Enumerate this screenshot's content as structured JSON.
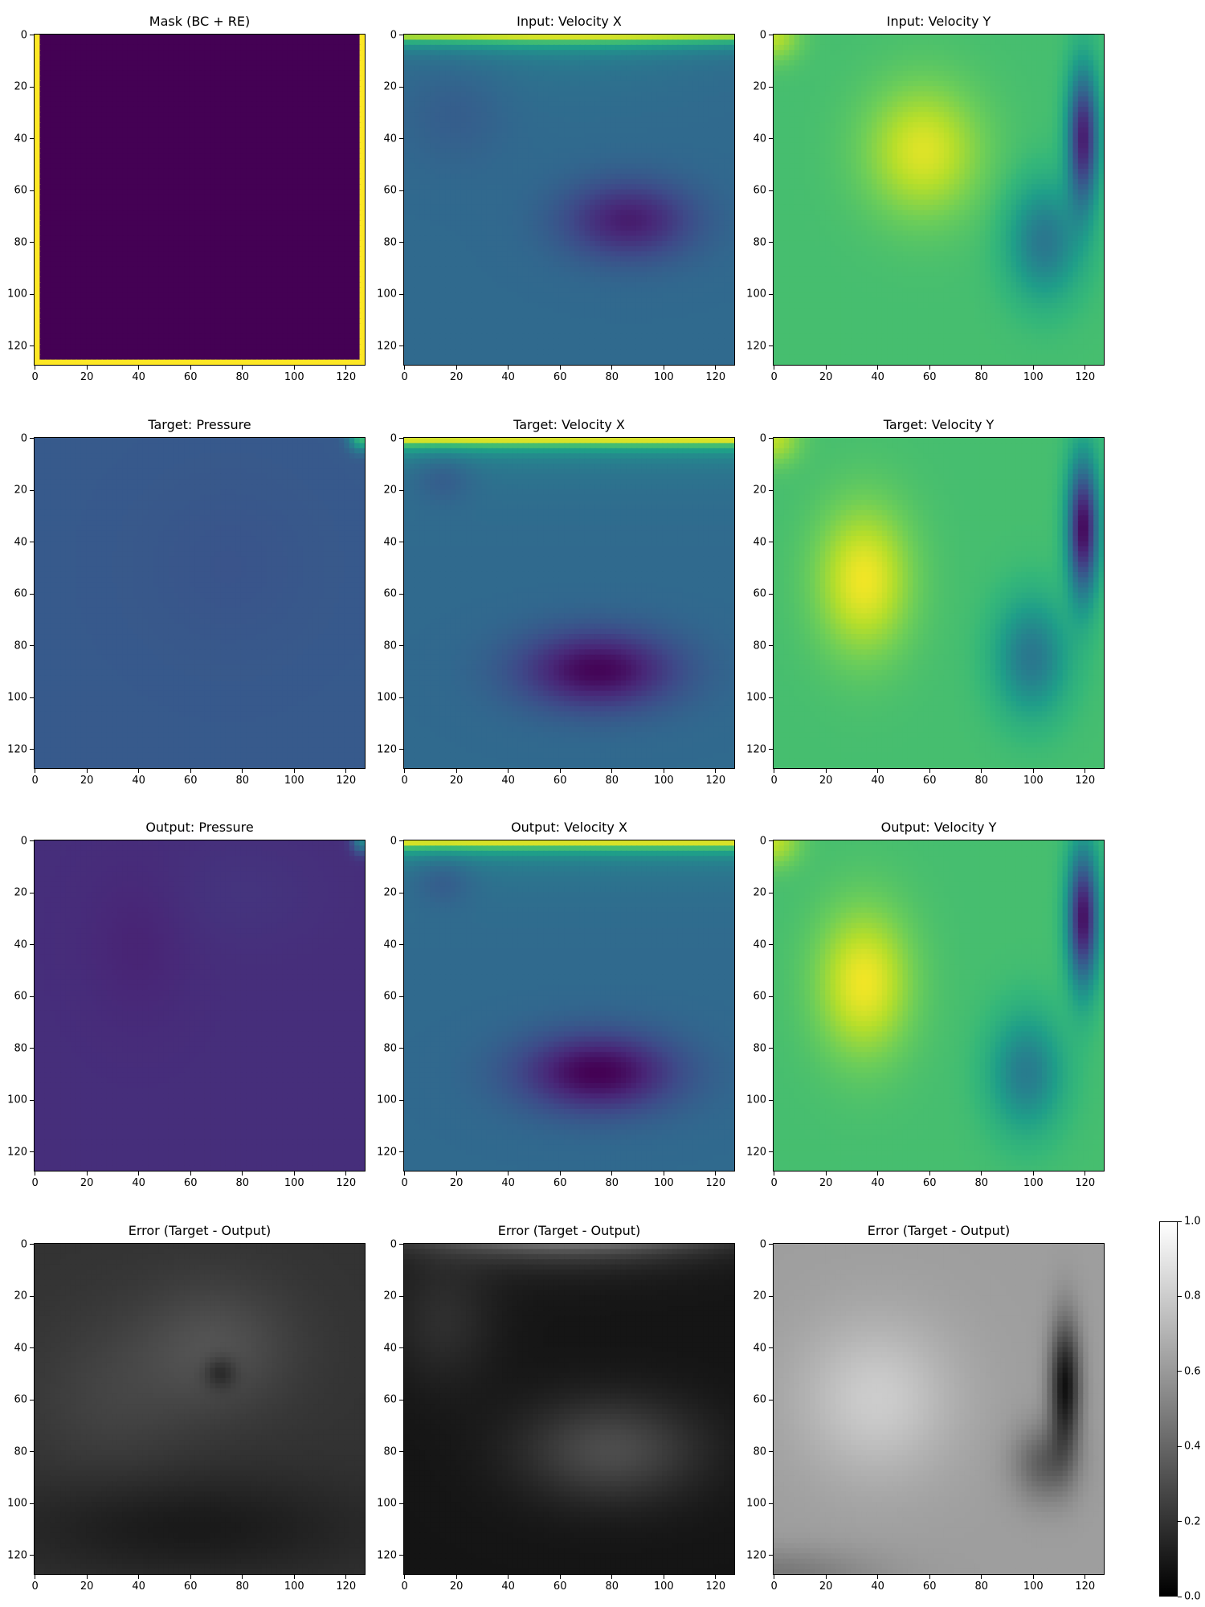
{
  "chart_data": [
    {
      "type": "heatmap",
      "title": "Mask (BC + RE)",
      "colormap": "viridis",
      "field": "mask",
      "xlim": [
        0,
        127
      ],
      "ylim": [
        127,
        0
      ],
      "x_ticks": [
        0,
        20,
        40,
        60,
        80,
        100,
        120
      ],
      "y_ticks": [
        0,
        20,
        40,
        60,
        80,
        100,
        120
      ]
    },
    {
      "type": "heatmap",
      "title": "Input: Velocity X",
      "colormap": "viridis",
      "field": "input_vx",
      "xlim": [
        0,
        127
      ],
      "ylim": [
        127,
        0
      ],
      "x_ticks": [
        0,
        20,
        40,
        60,
        80,
        100,
        120
      ],
      "y_ticks": [
        0,
        20,
        40,
        60,
        80,
        100,
        120
      ]
    },
    {
      "type": "heatmap",
      "title": "Input: Velocity Y",
      "colormap": "viridis",
      "field": "input_vy",
      "xlim": [
        0,
        127
      ],
      "ylim": [
        127,
        0
      ],
      "x_ticks": [
        0,
        20,
        40,
        60,
        80,
        100,
        120
      ],
      "y_ticks": [
        0,
        20,
        40,
        60,
        80,
        100,
        120
      ]
    },
    {
      "type": "heatmap",
      "title": "Target: Pressure",
      "colormap": "viridis",
      "field": "target_p",
      "xlim": [
        0,
        127
      ],
      "ylim": [
        127,
        0
      ],
      "x_ticks": [
        0,
        20,
        40,
        60,
        80,
        100,
        120
      ],
      "y_ticks": [
        0,
        20,
        40,
        60,
        80,
        100,
        120
      ]
    },
    {
      "type": "heatmap",
      "title": "Target: Velocity X",
      "colormap": "viridis",
      "field": "target_vx",
      "xlim": [
        0,
        127
      ],
      "ylim": [
        127,
        0
      ],
      "x_ticks": [
        0,
        20,
        40,
        60,
        80,
        100,
        120
      ],
      "y_ticks": [
        0,
        20,
        40,
        60,
        80,
        100,
        120
      ]
    },
    {
      "type": "heatmap",
      "title": "Target: Velocity Y",
      "colormap": "viridis",
      "field": "target_vy",
      "xlim": [
        0,
        127
      ],
      "ylim": [
        127,
        0
      ],
      "x_ticks": [
        0,
        20,
        40,
        60,
        80,
        100,
        120
      ],
      "y_ticks": [
        0,
        20,
        40,
        60,
        80,
        100,
        120
      ]
    },
    {
      "type": "heatmap",
      "title": "Output: Pressure",
      "colormap": "viridis",
      "field": "output_p",
      "xlim": [
        0,
        127
      ],
      "ylim": [
        127,
        0
      ],
      "x_ticks": [
        0,
        20,
        40,
        60,
        80,
        100,
        120
      ],
      "y_ticks": [
        0,
        20,
        40,
        60,
        80,
        100,
        120
      ]
    },
    {
      "type": "heatmap",
      "title": "Output: Velocity X",
      "colormap": "viridis",
      "field": "output_vx",
      "xlim": [
        0,
        127
      ],
      "ylim": [
        127,
        0
      ],
      "x_ticks": [
        0,
        20,
        40,
        60,
        80,
        100,
        120
      ],
      "y_ticks": [
        0,
        20,
        40,
        60,
        80,
        100,
        120
      ]
    },
    {
      "type": "heatmap",
      "title": "Output: Velocity Y",
      "colormap": "viridis",
      "field": "output_vy",
      "xlim": [
        0,
        127
      ],
      "ylim": [
        127,
        0
      ],
      "x_ticks": [
        0,
        20,
        40,
        60,
        80,
        100,
        120
      ],
      "y_ticks": [
        0,
        20,
        40,
        60,
        80,
        100,
        120
      ]
    },
    {
      "type": "heatmap",
      "title": "Error (Target - Output)",
      "colormap": "gray",
      "field": "error_p",
      "xlim": [
        0,
        127
      ],
      "ylim": [
        127,
        0
      ],
      "x_ticks": [
        0,
        20,
        40,
        60,
        80,
        100,
        120
      ],
      "y_ticks": [
        0,
        20,
        40,
        60,
        80,
        100,
        120
      ]
    },
    {
      "type": "heatmap",
      "title": "Error (Target - Output)",
      "colormap": "gray",
      "field": "error_vx",
      "xlim": [
        0,
        127
      ],
      "ylim": [
        127,
        0
      ],
      "x_ticks": [
        0,
        20,
        40,
        60,
        80,
        100,
        120
      ],
      "y_ticks": [
        0,
        20,
        40,
        60,
        80,
        100,
        120
      ]
    },
    {
      "type": "heatmap",
      "title": "Error (Target - Output)",
      "colormap": "gray",
      "field": "error_vy",
      "xlim": [
        0,
        127
      ],
      "ylim": [
        127,
        0
      ],
      "x_ticks": [
        0,
        20,
        40,
        60,
        80,
        100,
        120
      ],
      "y_ticks": [
        0,
        20,
        40,
        60,
        80,
        100,
        120
      ]
    }
  ],
  "colorbar": {
    "colormap": "gray",
    "range": [
      0.0,
      1.0
    ],
    "ticks": [
      "0.0",
      "0.2",
      "0.4",
      "0.6",
      "0.8",
      "1.0"
    ]
  }
}
